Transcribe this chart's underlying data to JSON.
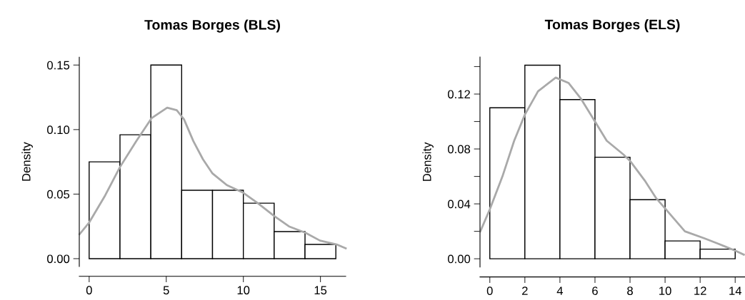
{
  "chart_data": [
    {
      "type": "histogram",
      "title": "Tomas Borges (BLS)",
      "ylabel": "Density",
      "color": "#ffffff",
      "bins": [
        0,
        2,
        4,
        6,
        8,
        10,
        12,
        14,
        16
      ],
      "values": [
        0.075,
        0.096,
        0.15,
        0.053,
        0.053,
        0.043,
        0.021,
        0.011
      ],
      "series": [
        {
          "type": "line",
          "color": "#a9a9a9",
          "x": [
            -0.62,
            0,
            1.04,
            2.0,
            3.05,
            4.06,
            5.06,
            5.68,
            6.15,
            6.76,
            7.38,
            8.0,
            8.93,
            10.0,
            10.94,
            12.0,
            12.96,
            14.04,
            14.97,
            16.05,
            16.64
          ],
          "values": [
            0.019,
            0.028,
            0.049,
            0.071,
            0.091,
            0.109,
            0.117,
            0.115,
            0.108,
            0.091,
            0.077,
            0.066,
            0.057,
            0.051,
            0.043,
            0.033,
            0.025,
            0.02,
            0.014,
            0.011,
            0.008
          ]
        }
      ],
      "xlim": [
        -0.64,
        16.64
      ],
      "ylim": [
        -0.006,
        0.156
      ],
      "xticks": [
        0,
        5,
        10,
        15
      ],
      "yticks": [
        {
          "value": 0,
          "label": "0.00"
        },
        {
          "value": 0.05,
          "label": "0.05"
        },
        {
          "value": 0.1,
          "label": "0.10"
        },
        {
          "value": 0.15,
          "label": "0.15"
        }
      ],
      "grid": false,
      "marker": "none",
      "line_style": "solid"
    },
    {
      "type": "histogram",
      "title": "Tomas Borges (ELS)",
      "ylabel": "Density",
      "color": "#ffffff",
      "bins": [
        0,
        2,
        4,
        6,
        8,
        10,
        12,
        14
      ],
      "values": [
        0.11,
        0.141,
        0.116,
        0.074,
        0.043,
        0.013,
        0.007
      ],
      "series": [
        {
          "type": "line",
          "color": "#a9a9a9",
          "x": [
            -0.54,
            0,
            0.72,
            1.39,
            2.0,
            2.75,
            3.76,
            4.5,
            5.18,
            6.0,
            6.67,
            7.62,
            8.02,
            8.84,
            9.5,
            10.05,
            11.13,
            12.22,
            13.03,
            13.98,
            14.49
          ],
          "values": [
            0.02,
            0.036,
            0.06,
            0.086,
            0.105,
            0.122,
            0.132,
            0.128,
            0.117,
            0.1,
            0.086,
            0.076,
            0.071,
            0.057,
            0.044,
            0.036,
            0.02,
            0.015,
            0.011,
            0.006,
            0.003
          ]
        }
      ],
      "xlim": [
        -0.56,
        14.56
      ],
      "ylim": [
        -0.006,
        0.147
      ],
      "xticks": [
        0,
        2,
        4,
        6,
        8,
        10,
        12,
        14
      ],
      "yticks": [
        {
          "value": 0,
          "label": "0.00"
        },
        {
          "value": 0.02,
          "label": null
        },
        {
          "value": 0.04,
          "label": "0.04"
        },
        {
          "value": 0.06,
          "label": null
        },
        {
          "value": 0.08,
          "label": "0.08"
        },
        {
          "value": 0.1,
          "label": null
        },
        {
          "value": 0.12,
          "label": "0.12"
        },
        {
          "value": 0.14,
          "label": null
        }
      ],
      "grid": false,
      "marker": "none",
      "line_style": "solid"
    }
  ]
}
